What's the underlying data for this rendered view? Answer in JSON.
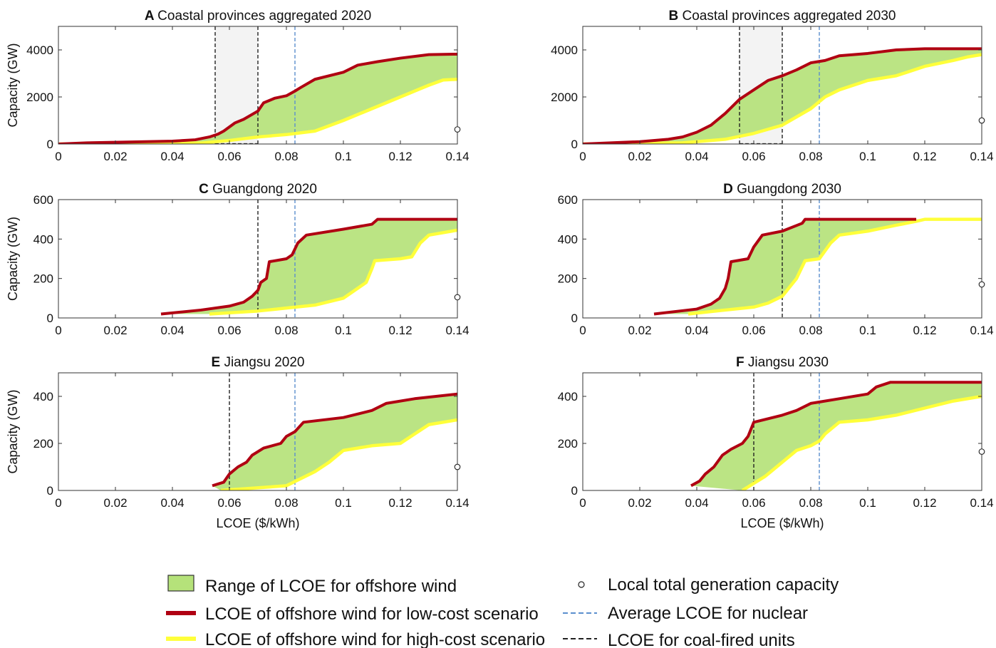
{
  "legend": {
    "range": "Range of LCOE for offshore wind",
    "low": "LCOE of offshore wind for low-cost scenario",
    "high": "LCOE of offshore wind for high-cost scenario",
    "local": "Local total generation capacity",
    "nuclear": "Average LCOE for nuclear",
    "coal": "LCOE for coal-fired units"
  },
  "colors": {
    "fill": "#b5e27a",
    "low": "#b00012",
    "high": "#ffff3a",
    "nuclear": "#5b8fce",
    "coal": "#222222",
    "shade": "#f3f3f3"
  },
  "chart_data": [
    {
      "type": "area",
      "letter": "A",
      "title": "Coastal provinces aggregated 2020",
      "ylabel": "Capacity (GW)",
      "xlabel": "",
      "xlim": [
        0,
        0.14
      ],
      "ylim": [
        0,
        5000
      ],
      "xticks": [
        "0",
        "0.02",
        "0.04",
        "0.06",
        "0.08",
        "0.1",
        "0.12",
        "0.14"
      ],
      "yticks": [
        "0",
        "2000",
        "4000"
      ],
      "low_cost": [
        [
          0,
          0
        ],
        [
          0.01,
          50
        ],
        [
          0.04,
          120
        ],
        [
          0.048,
          180
        ],
        [
          0.053,
          300
        ],
        [
          0.056,
          420
        ],
        [
          0.058,
          550
        ],
        [
          0.062,
          900
        ],
        [
          0.065,
          1050
        ],
        [
          0.07,
          1400
        ],
        [
          0.072,
          1750
        ],
        [
          0.076,
          1950
        ],
        [
          0.08,
          2050
        ],
        [
          0.083,
          2250
        ],
        [
          0.085,
          2400
        ],
        [
          0.09,
          2750
        ],
        [
          0.1,
          3050
        ],
        [
          0.105,
          3350
        ],
        [
          0.112,
          3500
        ],
        [
          0.12,
          3650
        ],
        [
          0.13,
          3800
        ],
        [
          0.14,
          3820
        ]
      ],
      "high_cost": [
        [
          0,
          0
        ],
        [
          0.05,
          40
        ],
        [
          0.06,
          150
        ],
        [
          0.07,
          300
        ],
        [
          0.08,
          400
        ],
        [
          0.09,
          550
        ],
        [
          0.1,
          1000
        ],
        [
          0.11,
          1500
        ],
        [
          0.12,
          2000
        ],
        [
          0.13,
          2500
        ],
        [
          0.135,
          2720
        ],
        [
          0.14,
          2750
        ]
      ],
      "nuclear_lcoe": 0.083,
      "coal_lcoe": [
        0.055,
        0.07
      ],
      "local_capacity": 620
    },
    {
      "type": "area",
      "letter": "B",
      "title": "Coastal provinces aggregated 2030",
      "ylabel": "",
      "xlabel": "",
      "xlim": [
        0,
        0.14
      ],
      "ylim": [
        0,
        5000
      ],
      "xticks": [
        "0",
        "0.02",
        "0.04",
        "0.06",
        "0.08",
        "0.1",
        "0.12",
        "0.14"
      ],
      "yticks": [
        "0",
        "2000",
        "4000"
      ],
      "low_cost": [
        [
          0,
          0
        ],
        [
          0.02,
          100
        ],
        [
          0.03,
          200
        ],
        [
          0.035,
          300
        ],
        [
          0.04,
          500
        ],
        [
          0.045,
          800
        ],
        [
          0.05,
          1300
        ],
        [
          0.055,
          1900
        ],
        [
          0.06,
          2300
        ],
        [
          0.065,
          2700
        ],
        [
          0.07,
          2900
        ],
        [
          0.075,
          3150
        ],
        [
          0.08,
          3450
        ],
        [
          0.085,
          3550
        ],
        [
          0.09,
          3750
        ],
        [
          0.1,
          3850
        ],
        [
          0.11,
          4000
        ],
        [
          0.12,
          4050
        ],
        [
          0.14,
          4050
        ]
      ],
      "high_cost": [
        [
          0,
          0
        ],
        [
          0.035,
          50
        ],
        [
          0.05,
          200
        ],
        [
          0.06,
          450
        ],
        [
          0.07,
          800
        ],
        [
          0.08,
          1500
        ],
        [
          0.085,
          2000
        ],
        [
          0.09,
          2300
        ],
        [
          0.1,
          2700
        ],
        [
          0.11,
          2900
        ],
        [
          0.12,
          3300
        ],
        [
          0.13,
          3550
        ],
        [
          0.135,
          3700
        ],
        [
          0.14,
          3800
        ]
      ],
      "nuclear_lcoe": 0.083,
      "coal_lcoe": [
        0.055,
        0.07
      ],
      "local_capacity": 1000
    },
    {
      "type": "area",
      "letter": "C",
      "title": "Guangdong 2020",
      "ylabel": "Capacity (GW)",
      "xlabel": "",
      "xlim": [
        0,
        0.14
      ],
      "ylim": [
        0,
        600
      ],
      "xticks": [
        "0",
        "0.02",
        "0.04",
        "0.06",
        "0.08",
        "0.1",
        "0.12",
        "0.14"
      ],
      "yticks": [
        "0",
        "200",
        "400",
        "600"
      ],
      "low_cost": [
        [
          0.036,
          20
        ],
        [
          0.05,
          40
        ],
        [
          0.06,
          60
        ],
        [
          0.065,
          80
        ],
        [
          0.068,
          110
        ],
        [
          0.07,
          140
        ],
        [
          0.071,
          180
        ],
        [
          0.073,
          200
        ],
        [
          0.074,
          285
        ],
        [
          0.08,
          300
        ],
        [
          0.082,
          320
        ],
        [
          0.084,
          380
        ],
        [
          0.087,
          420
        ],
        [
          0.1,
          450
        ],
        [
          0.11,
          475
        ],
        [
          0.112,
          500
        ],
        [
          0.14,
          500
        ]
      ],
      "high_cost": [
        [
          0.053,
          20
        ],
        [
          0.07,
          35
        ],
        [
          0.08,
          50
        ],
        [
          0.09,
          65
        ],
        [
          0.1,
          100
        ],
        [
          0.108,
          180
        ],
        [
          0.11,
          250
        ],
        [
          0.111,
          290
        ],
        [
          0.12,
          300
        ],
        [
          0.124,
          310
        ],
        [
          0.127,
          380
        ],
        [
          0.13,
          420
        ],
        [
          0.14,
          445
        ]
      ],
      "nuclear_lcoe": 0.083,
      "coal_lcoe": [
        0.07
      ],
      "local_capacity": 105
    },
    {
      "type": "area",
      "letter": "D",
      "title": "Guangdong 2030",
      "ylabel": "",
      "xlabel": "",
      "xlim": [
        0,
        0.14
      ],
      "ylim": [
        0,
        600
      ],
      "xticks": [
        "0",
        "0.02",
        "0.04",
        "0.06",
        "0.08",
        "0.1",
        "0.12",
        "0.14"
      ],
      "yticks": [
        "0",
        "200",
        "400",
        "600"
      ],
      "low_cost": [
        [
          0.025,
          20
        ],
        [
          0.04,
          45
        ],
        [
          0.045,
          70
        ],
        [
          0.048,
          100
        ],
        [
          0.05,
          150
        ],
        [
          0.051,
          200
        ],
        [
          0.052,
          285
        ],
        [
          0.058,
          300
        ],
        [
          0.06,
          360
        ],
        [
          0.063,
          420
        ],
        [
          0.07,
          440
        ],
        [
          0.077,
          480
        ],
        [
          0.078,
          500
        ],
        [
          0.117,
          500
        ]
      ],
      "high_cost": [
        [
          0.037,
          20
        ],
        [
          0.05,
          40
        ],
        [
          0.06,
          55
        ],
        [
          0.065,
          75
        ],
        [
          0.07,
          110
        ],
        [
          0.075,
          200
        ],
        [
          0.078,
          290
        ],
        [
          0.083,
          300
        ],
        [
          0.087,
          380
        ],
        [
          0.09,
          420
        ],
        [
          0.1,
          440
        ],
        [
          0.11,
          470
        ],
        [
          0.117,
          490
        ],
        [
          0.12,
          500
        ],
        [
          0.14,
          500
        ]
      ],
      "nuclear_lcoe": 0.083,
      "coal_lcoe": [
        0.07
      ],
      "local_capacity": 170
    },
    {
      "type": "area",
      "letter": "E",
      "title": "Jiangsu 2020",
      "ylabel": "Capacity (GW)",
      "xlabel": "LCOE ($/kWh)",
      "xlim": [
        0,
        0.14
      ],
      "ylim": [
        0,
        500
      ],
      "xticks": [
        "0",
        "0.02",
        "0.04",
        "0.06",
        "0.08",
        "0.1",
        "0.12",
        "0.14"
      ],
      "yticks": [
        "0",
        "200",
        "400"
      ],
      "low_cost": [
        [
          0.054,
          20
        ],
        [
          0.058,
          35
        ],
        [
          0.06,
          70
        ],
        [
          0.063,
          100
        ],
        [
          0.066,
          120
        ],
        [
          0.068,
          150
        ],
        [
          0.072,
          180
        ],
        [
          0.078,
          200
        ],
        [
          0.08,
          230
        ],
        [
          0.083,
          250
        ],
        [
          0.086,
          290
        ],
        [
          0.1,
          310
        ],
        [
          0.11,
          340
        ],
        [
          0.115,
          370
        ],
        [
          0.125,
          390
        ],
        [
          0.14,
          410
        ]
      ],
      "high_cost": [
        [
          0.057,
          0
        ],
        [
          0.08,
          20
        ],
        [
          0.085,
          50
        ],
        [
          0.09,
          80
        ],
        [
          0.095,
          120
        ],
        [
          0.1,
          170
        ],
        [
          0.11,
          190
        ],
        [
          0.12,
          200
        ],
        [
          0.125,
          240
        ],
        [
          0.13,
          280
        ],
        [
          0.14,
          300
        ]
      ],
      "nuclear_lcoe": 0.083,
      "coal_lcoe": [
        0.06
      ],
      "local_capacity": 100
    },
    {
      "type": "area",
      "letter": "F",
      "title": "Jiangsu 2030",
      "ylabel": "",
      "xlabel": "LCOE ($/kWh)",
      "xlim": [
        0,
        0.14
      ],
      "ylim": [
        0,
        500
      ],
      "xticks": [
        "0",
        "0.02",
        "0.04",
        "0.06",
        "0.08",
        "0.1",
        "0.12",
        "0.14"
      ],
      "yticks": [
        "0",
        "200",
        "400"
      ],
      "low_cost": [
        [
          0.038,
          20
        ],
        [
          0.041,
          40
        ],
        [
          0.043,
          70
        ],
        [
          0.046,
          100
        ],
        [
          0.049,
          150
        ],
        [
          0.052,
          175
        ],
        [
          0.056,
          200
        ],
        [
          0.058,
          230
        ],
        [
          0.06,
          290
        ],
        [
          0.07,
          320
        ],
        [
          0.075,
          340
        ],
        [
          0.08,
          370
        ],
        [
          0.09,
          390
        ],
        [
          0.1,
          410
        ],
        [
          0.103,
          440
        ],
        [
          0.108,
          460
        ],
        [
          0.14,
          460
        ]
      ],
      "high_cost": [
        [
          0.056,
          0
        ],
        [
          0.06,
          30
        ],
        [
          0.064,
          60
        ],
        [
          0.066,
          80
        ],
        [
          0.07,
          120
        ],
        [
          0.075,
          170
        ],
        [
          0.08,
          190
        ],
        [
          0.083,
          210
        ],
        [
          0.085,
          240
        ],
        [
          0.09,
          290
        ],
        [
          0.1,
          300
        ],
        [
          0.11,
          320
        ],
        [
          0.12,
          350
        ],
        [
          0.13,
          380
        ],
        [
          0.14,
          400
        ]
      ],
      "nuclear_lcoe": 0.083,
      "coal_lcoe": [
        0.06
      ],
      "local_capacity": 165
    }
  ]
}
